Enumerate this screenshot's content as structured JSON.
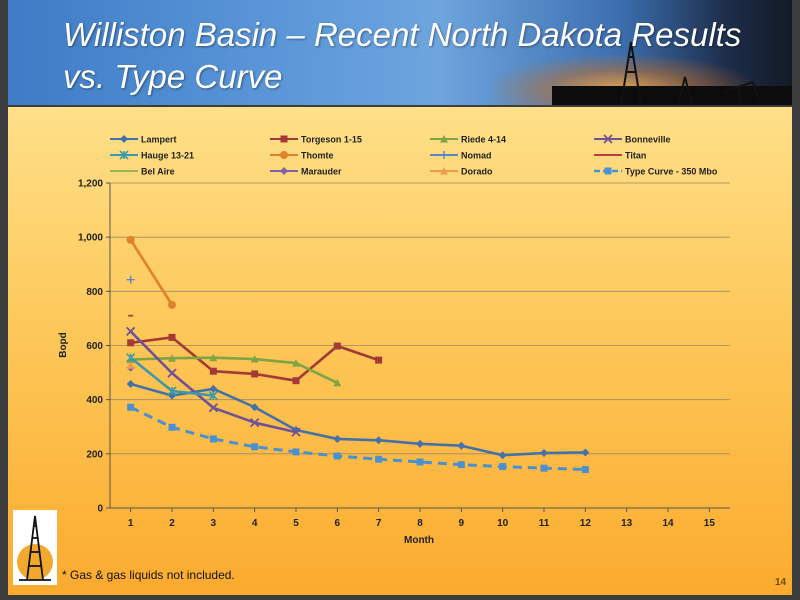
{
  "header": {
    "title": "Williston Basin – Recent North Dakota Results vs. Type Curve"
  },
  "footnote": "* Gas & gas liquids not included.",
  "page_number": "14",
  "colors": {
    "title": "#ffffff",
    "header": "#4a88cf",
    "background_top": "#fee089",
    "background_bottom": "#fbab2e"
  },
  "chart_data": {
    "type": "line",
    "xlabel": "Month",
    "ylabel": "Bopd",
    "xlim": [
      1,
      15
    ],
    "ylim": [
      0,
      1200
    ],
    "x_ticks": [
      1,
      2,
      3,
      4,
      5,
      6,
      7,
      8,
      9,
      10,
      11,
      12,
      13,
      14,
      15
    ],
    "y_ticks": [
      0,
      200,
      400,
      600,
      800,
      1000,
      1200
    ],
    "y_tick_labels": [
      "0",
      "200",
      "400",
      "600",
      "800",
      "1,000",
      "1,200"
    ],
    "grid": "horizontal",
    "legend_position": "top",
    "series": [
      {
        "name": "Lampert",
        "color": "#4472a8",
        "marker": "diamond",
        "dashed": false,
        "x": [
          1,
          2,
          3,
          4,
          5,
          6,
          7,
          8,
          9,
          10,
          11,
          12
        ],
        "values": [
          458,
          415,
          440,
          372,
          288,
          255,
          250,
          237,
          230,
          195,
          203,
          205
        ]
      },
      {
        "name": "Torgeson 1-15",
        "color": "#a33a37",
        "marker": "square",
        "dashed": false,
        "x": [
          1,
          2,
          3,
          4,
          5,
          6,
          7
        ],
        "values": [
          610,
          630,
          505,
          495,
          470,
          598,
          546
        ]
      },
      {
        "name": "Riede 4-14",
        "color": "#7ea444",
        "marker": "triangle",
        "dashed": false,
        "x": [
          1,
          2,
          3,
          4,
          5,
          6
        ],
        "values": [
          548,
          553,
          555,
          550,
          535,
          462
        ]
      },
      {
        "name": "Bonneville",
        "color": "#6f5396",
        "marker": "x",
        "dashed": false,
        "x": [
          1,
          2,
          3,
          4,
          5
        ],
        "values": [
          652,
          498,
          370,
          315,
          280
        ]
      },
      {
        "name": "Hauge 13-21",
        "color": "#3d9aa8",
        "marker": "star",
        "dashed": false,
        "x": [
          1,
          2,
          3
        ],
        "values": [
          555,
          432,
          415
        ]
      },
      {
        "name": "Thomte",
        "color": "#e0812c",
        "marker": "circle",
        "dashed": false,
        "x": [
          1,
          2
        ],
        "values": [
          990,
          750
        ]
      },
      {
        "name": "Nomad",
        "color": "#5a86c4",
        "marker": "plus",
        "dashed": false,
        "x": [
          1
        ],
        "values": [
          843
        ]
      },
      {
        "name": "Titan",
        "color": "#b8403a",
        "marker": "dash",
        "dashed": false,
        "x": [
          1
        ],
        "values": [
          710
        ]
      },
      {
        "name": "Bel Aire",
        "color": "#9ab558",
        "marker": "none",
        "dashed": false,
        "x": [
          1
        ],
        "values": [
          515
        ]
      },
      {
        "name": "Marauder",
        "color": "#8064a2",
        "marker": "diamond",
        "dashed": false,
        "x": [
          1
        ],
        "values": [
          518
        ]
      },
      {
        "name": "Dorado",
        "color": "#f39a46",
        "marker": "triangle",
        "dashed": false,
        "x": [
          1
        ],
        "values": [
          527
        ]
      },
      {
        "name": "Type Curve - 350 Mbo",
        "color": "#4a91d0",
        "marker": "square",
        "dashed": true,
        "x": [
          1,
          2,
          3,
          4,
          5,
          6,
          7,
          8,
          9,
          10,
          11,
          12
        ],
        "values": [
          372,
          298,
          255,
          226,
          207,
          192,
          180,
          170,
          160,
          153,
          147,
          142
        ]
      }
    ]
  }
}
